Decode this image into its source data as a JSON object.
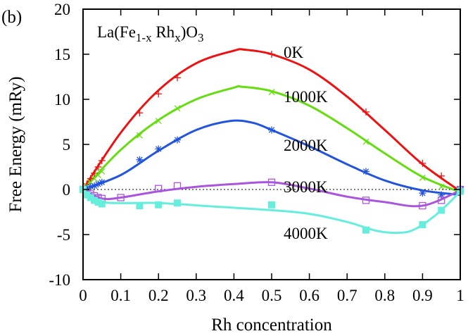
{
  "chart_data": {
    "type": "line",
    "panel_label": "(b)",
    "formula": {
      "base": "La(Fe",
      "sub1": "1-x",
      "mid": " Rh",
      "sub2": "x",
      "close": ")O",
      "sub3": "3"
    },
    "xlabel": "Rh concentration",
    "ylabel": "Free Energy (mRy)",
    "xlim": [
      0,
      1
    ],
    "ylim": [
      -10,
      20
    ],
    "xticks": [
      "0",
      "0.1",
      "0.2",
      "0.3",
      "0.4",
      "0.5",
      "0.6",
      "0.7",
      "0.8",
      "0.9",
      "1"
    ],
    "yticks": [
      "-10",
      "-5",
      "0",
      "5",
      "10",
      "15",
      "20"
    ],
    "zero_line": true,
    "series": [
      {
        "name": "0K",
        "color": "#ee1111",
        "marker": "plus",
        "points": [
          [
            0,
            0
          ],
          [
            0.01,
            0.6
          ],
          [
            0.02,
            1.2
          ],
          [
            0.03,
            1.8
          ],
          [
            0.04,
            2.5
          ],
          [
            0.05,
            3.2
          ],
          [
            0.15,
            8.5
          ],
          [
            0.2,
            10.6
          ],
          [
            0.25,
            12.4
          ],
          [
            0.5,
            15.0
          ],
          [
            0.75,
            8.6
          ],
          [
            0.9,
            2.9
          ],
          [
            0.95,
            1.5
          ],
          [
            1,
            0
          ]
        ],
        "curve": [
          [
            0,
            0
          ],
          [
            0.1,
            6.3
          ],
          [
            0.2,
            11.0
          ],
          [
            0.3,
            14.0
          ],
          [
            0.4,
            15.4
          ],
          [
            0.43,
            15.5
          ],
          [
            0.5,
            15.0
          ],
          [
            0.6,
            13.3
          ],
          [
            0.7,
            10.3
          ],
          [
            0.8,
            6.6
          ],
          [
            0.9,
            2.8
          ],
          [
            1,
            -0.2
          ]
        ]
      },
      {
        "name": "1000K",
        "color": "#66dd11",
        "marker": "cross",
        "points": [
          [
            0,
            0
          ],
          [
            0.01,
            0.4
          ],
          [
            0.02,
            0.8
          ],
          [
            0.03,
            1.2
          ],
          [
            0.04,
            1.6
          ],
          [
            0.05,
            2.0
          ],
          [
            0.15,
            6.0
          ],
          [
            0.2,
            7.6
          ],
          [
            0.25,
            9.0
          ],
          [
            0.5,
            10.8
          ],
          [
            0.75,
            5.3
          ],
          [
            0.9,
            1.3
          ],
          [
            0.95,
            0.3
          ],
          [
            1,
            0
          ]
        ],
        "curve": [
          [
            0,
            0
          ],
          [
            0.1,
            4.4
          ],
          [
            0.2,
            7.7
          ],
          [
            0.3,
            10.0
          ],
          [
            0.4,
            11.3
          ],
          [
            0.42,
            11.4
          ],
          [
            0.5,
            10.9
          ],
          [
            0.6,
            9.3
          ],
          [
            0.7,
            6.8
          ],
          [
            0.8,
            4.0
          ],
          [
            0.9,
            1.4
          ],
          [
            1,
            -0.3
          ]
        ]
      },
      {
        "name": "2000K",
        "color": "#2255dd",
        "marker": "star",
        "points": [
          [
            0,
            0
          ],
          [
            0.01,
            0.1
          ],
          [
            0.02,
            0.3
          ],
          [
            0.03,
            0.4
          ],
          [
            0.04,
            0.6
          ],
          [
            0.05,
            0.8
          ],
          [
            0.15,
            3.3
          ],
          [
            0.2,
            4.5
          ],
          [
            0.25,
            5.5
          ],
          [
            0.5,
            6.6
          ],
          [
            0.75,
            2.0
          ],
          [
            0.9,
            -0.4
          ],
          [
            0.95,
            -0.6
          ],
          [
            1,
            0
          ]
        ],
        "curve": [
          [
            0,
            0
          ],
          [
            0.1,
            1.6
          ],
          [
            0.2,
            4.3
          ],
          [
            0.3,
            6.6
          ],
          [
            0.39,
            7.6
          ],
          [
            0.45,
            7.4
          ],
          [
            0.5,
            6.6
          ],
          [
            0.6,
            4.8
          ],
          [
            0.7,
            2.8
          ],
          [
            0.8,
            1.0
          ],
          [
            0.9,
            -0.1
          ],
          [
            1,
            -0.6
          ]
        ]
      },
      {
        "name": "3000K",
        "color": "#aa55dd",
        "marker": "open-square",
        "points": [
          [
            0,
            0
          ],
          [
            0.01,
            -0.3
          ],
          [
            0.02,
            -0.5
          ],
          [
            0.03,
            -0.7
          ],
          [
            0.04,
            -0.9
          ],
          [
            0.05,
            -1.0
          ],
          [
            0.1,
            -0.9
          ],
          [
            0.2,
            0.1
          ],
          [
            0.25,
            0.4
          ],
          [
            0.5,
            0.8
          ],
          [
            0.75,
            -1.2
          ],
          [
            0.9,
            -1.8
          ],
          [
            0.95,
            -1.2
          ],
          [
            1,
            0
          ]
        ],
        "curve": [
          [
            0,
            0
          ],
          [
            0.05,
            -1.0
          ],
          [
            0.1,
            -0.9
          ],
          [
            0.2,
            -0.2
          ],
          [
            0.3,
            0.3
          ],
          [
            0.4,
            0.6
          ],
          [
            0.5,
            0.8
          ],
          [
            0.6,
            0.1
          ],
          [
            0.7,
            -0.8
          ],
          [
            0.8,
            -1.4
          ],
          [
            0.9,
            -1.8
          ],
          [
            1,
            -0.1
          ]
        ]
      },
      {
        "name": "4000K",
        "color": "#66eedd",
        "marker": "filled-square",
        "points": [
          [
            0,
            0
          ],
          [
            0.01,
            -0.6
          ],
          [
            0.02,
            -0.9
          ],
          [
            0.03,
            -1.2
          ],
          [
            0.04,
            -1.4
          ],
          [
            0.05,
            -1.6
          ],
          [
            0.15,
            -1.8
          ],
          [
            0.2,
            -1.7
          ],
          [
            0.25,
            -1.5
          ],
          [
            0.5,
            -1.7
          ],
          [
            0.75,
            -4.5
          ],
          [
            0.9,
            -3.9
          ],
          [
            0.95,
            -2.3
          ],
          [
            1,
            -0.2
          ]
        ],
        "curve": [
          [
            0,
            0
          ],
          [
            0.05,
            -1.4
          ],
          [
            0.2,
            -1.5
          ],
          [
            0.35,
            -1.9
          ],
          [
            0.5,
            -2.3
          ],
          [
            0.6,
            -2.7
          ],
          [
            0.7,
            -3.6
          ],
          [
            0.78,
            -4.6
          ],
          [
            0.84,
            -4.8
          ],
          [
            0.88,
            -4.4
          ],
          [
            0.93,
            -3.0
          ],
          [
            0.97,
            -1.5
          ],
          [
            1,
            -0.2
          ]
        ]
      }
    ]
  }
}
